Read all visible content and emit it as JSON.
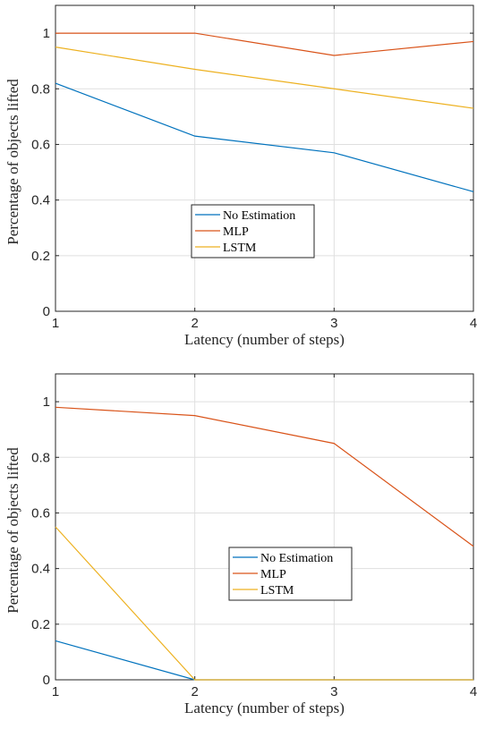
{
  "colors": {
    "no_estimation": "#0072BD",
    "mlp": "#D95319",
    "lstm": "#EDB120",
    "axis": "#262626",
    "grid": "#dfdfdf"
  },
  "chart_data": [
    {
      "type": "line",
      "x": [
        1,
        2,
        3,
        4
      ],
      "xticks": [
        "1",
        "2",
        "3",
        "4"
      ],
      "yticks": [
        "0",
        "0.2",
        "0.4",
        "0.6",
        "0.8",
        "1"
      ],
      "xlim": [
        1,
        4
      ],
      "ylim": [
        0,
        1.1
      ],
      "xlabel": "Latency (number of steps)",
      "ylabel": "Percentage of objects lifted",
      "grid": true,
      "legend_position": "center",
      "series": [
        {
          "key": "no_estimation",
          "name": "No Estimation",
          "values": [
            0.82,
            0.63,
            0.57,
            0.43
          ]
        },
        {
          "key": "mlp",
          "name": "MLP",
          "values": [
            1.0,
            1.0,
            0.92,
            0.97
          ]
        },
        {
          "key": "lstm",
          "name": "LSTM",
          "values": [
            0.95,
            0.87,
            0.8,
            0.73
          ]
        }
      ]
    },
    {
      "type": "line",
      "x": [
        1,
        2,
        3,
        4
      ],
      "xticks": [
        "1",
        "2",
        "3",
        "4"
      ],
      "yticks": [
        "0",
        "0.2",
        "0.4",
        "0.6",
        "0.8",
        "1"
      ],
      "xlim": [
        1,
        4
      ],
      "ylim": [
        0,
        1.1
      ],
      "xlabel": "Latency (number of steps)",
      "ylabel": "Percentage of objects lifted",
      "grid": true,
      "legend_position": "center",
      "series": [
        {
          "key": "no_estimation",
          "name": "No Estimation",
          "values": [
            0.14,
            0.0,
            0.0,
            0.0
          ]
        },
        {
          "key": "mlp",
          "name": "MLP",
          "values": [
            0.98,
            0.95,
            0.85,
            0.48
          ]
        },
        {
          "key": "lstm",
          "name": "LSTM",
          "values": [
            0.55,
            0.0,
            0.0,
            0.0
          ]
        }
      ]
    }
  ]
}
